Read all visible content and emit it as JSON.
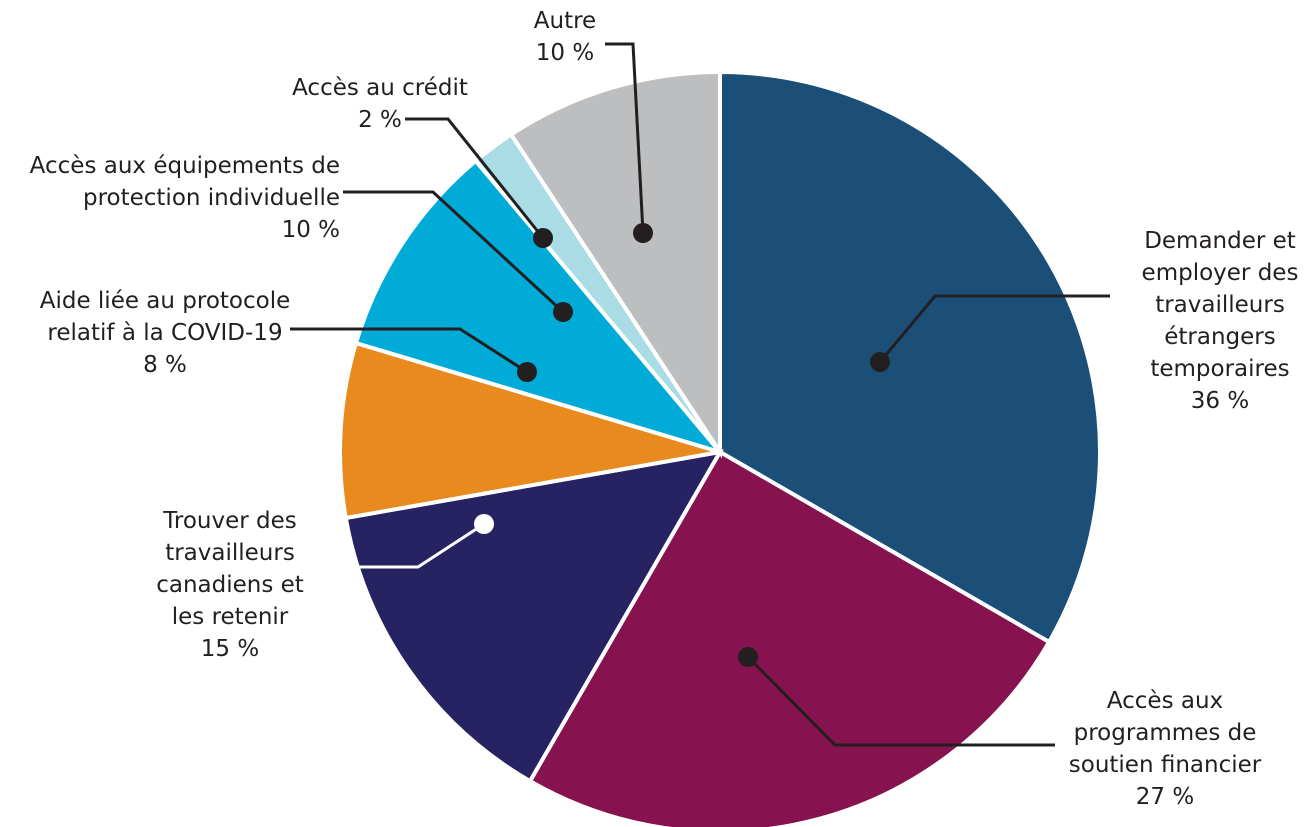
{
  "chart_data": {
    "type": "pie",
    "categories": [
      "Demander et employer des travailleurs étrangers temporaires",
      "Accès aux programmes de soutien financier",
      "Trouver des travailleurs canadiens et les retenir",
      "Aide liée au protocole relatif à la COVID-19",
      "Accès aux équipements de protection individuelle",
      "Accès au crédit",
      "Autre"
    ],
    "values": [
      36,
      27,
      15,
      8,
      10,
      2,
      10
    ],
    "value_labels": [
      "36 %",
      "27 %",
      "15 %",
      "8 %",
      "10 %",
      "2 %",
      "10 %"
    ],
    "colors": [
      "#1b4f78",
      "#861350",
      "#272262",
      "#e88a1e",
      "#00acd7",
      "#a9dce4",
      "#bcbec0"
    ]
  }
}
